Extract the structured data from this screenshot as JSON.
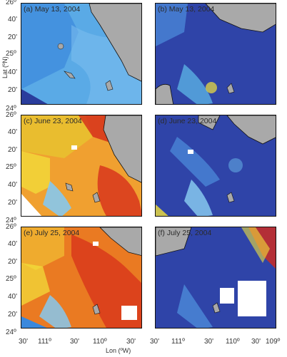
{
  "panels": [
    {
      "label": "(a) May 13, 2004"
    },
    {
      "label": "(b) May 13, 2004"
    },
    {
      "label": "(c) June 23, 2004"
    },
    {
      "label": "(d) June 23, 2004"
    },
    {
      "label": "(e) July 25, 2004"
    },
    {
      "label": "(f) July 25, 2004"
    }
  ],
  "axes": {
    "ylabel": "Lat (ºN)",
    "xlabel": "Lon (ºW)",
    "ytick_top": "26º",
    "ytick_bottom": "24º",
    "yticks": [
      "40'",
      "20'",
      "25º",
      "40'",
      "20'"
    ],
    "xticks_left": [
      "30'",
      "111º",
      "30'",
      "110º",
      "30'"
    ],
    "xticks_right": [
      "30'",
      "111º",
      "30'",
      "110º",
      "30'",
      "109º"
    ]
  },
  "colors": {
    "land": "#a9a9a9",
    "coast": "#111111",
    "low": "#28358f",
    "mid_blue": "#4a86d6",
    "light_blue": "#86c8ee",
    "yellow": "#f2e23a",
    "orange": "#f08a22",
    "red": "#d52a1a"
  }
}
